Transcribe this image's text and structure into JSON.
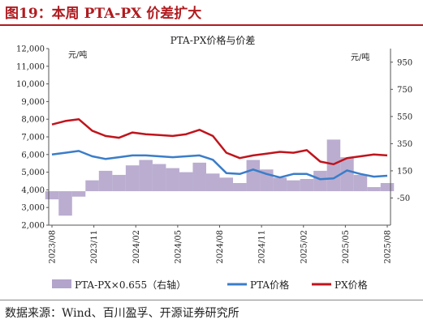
{
  "figure": {
    "title": "图19：本周 PTA-PX 价差扩大",
    "source": "数据来源：Wind、百川盈孚、开源证券研究所"
  },
  "colors": {
    "title": "#b01c20",
    "spread": "#b3a4cb",
    "pta": "#3a7dc9",
    "px": "#c0141c",
    "axis": "#555555"
  },
  "chart_data": {
    "type": "line",
    "title": "PTA-PX价格与价差",
    "y_left_unit": "元/吨",
    "y_right_unit": "元/吨",
    "y_left_ticks": [
      "12,000",
      "11,000",
      "10,000",
      "9,000",
      "8,000",
      "7,000",
      "6,000",
      "5,000",
      "4,000",
      "3,000",
      "2,000"
    ],
    "y_right_ticks": [
      "950",
      "750",
      "550",
      "350",
      "150",
      "-50"
    ],
    "ylim_left": [
      2000,
      12000
    ],
    "ylim_right": [
      -250,
      1050
    ],
    "x_tick_labels": [
      "2023/08",
      "2023/11",
      "2024/02",
      "2024/05",
      "2024/08",
      "2024/11",
      "2025/02",
      "2025/05",
      "2025/08"
    ],
    "x": [
      "2023/08",
      "2023/09",
      "2023/10",
      "2023/11",
      "2023/12",
      "2024/01",
      "2024/02",
      "2024/03",
      "2024/04",
      "2024/05",
      "2024/06",
      "2024/07",
      "2024/08",
      "2024/09",
      "2024/10",
      "2024/11",
      "2024/12",
      "2025/01",
      "2025/02",
      "2025/03",
      "2025/04",
      "2025/05",
      "2025/06",
      "2025/07",
      "2025/08",
      "2025/09"
    ],
    "series": [
      {
        "name": "PTA-PX×0.655（右轴）",
        "type": "area",
        "axis": "right",
        "values": [
          -60,
          -180,
          -40,
          80,
          150,
          120,
          190,
          230,
          200,
          170,
          140,
          210,
          130,
          100,
          60,
          230,
          160,
          100,
          80,
          90,
          150,
          380,
          250,
          120,
          30,
          60
        ]
      },
      {
        "name": "PTA价格",
        "type": "line",
        "axis": "left",
        "values": [
          6000,
          6100,
          6200,
          5900,
          5750,
          5850,
          5950,
          5950,
          5900,
          5850,
          5900,
          5950,
          5700,
          4950,
          4900,
          5150,
          4900,
          4700,
          4900,
          4900,
          4600,
          4650,
          5100,
          4900,
          4750,
          4800
        ]
      },
      {
        "name": "PX价格",
        "type": "line",
        "axis": "left",
        "values": [
          7700,
          7900,
          8000,
          7350,
          7050,
          6950,
          7250,
          7150,
          7100,
          7050,
          7150,
          7400,
          7050,
          6100,
          5800,
          5950,
          6050,
          6150,
          6100,
          6250,
          5600,
          5450,
          5800,
          5900,
          6000,
          5950
        ]
      }
    ],
    "legend": "bottom"
  }
}
